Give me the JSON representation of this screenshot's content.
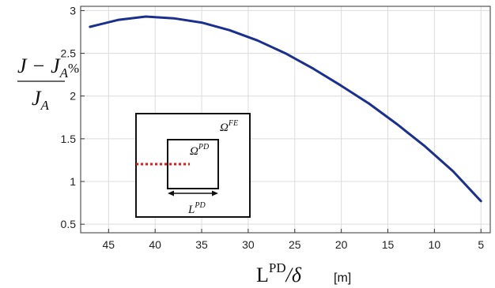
{
  "chart_data": {
    "type": "line",
    "x_reversed": true,
    "xlim": [
      48,
      4
    ],
    "ylim": [
      0.4,
      3.05
    ],
    "x_ticks": [
      45,
      40,
      35,
      30,
      25,
      20,
      15,
      10,
      5
    ],
    "y_ticks": [
      0.5,
      1,
      1.5,
      2,
      2.5,
      3
    ],
    "x_tick_labels": [
      "45",
      "40",
      "35",
      "30",
      "25",
      "20",
      "15",
      "10",
      "5"
    ],
    "y_tick_labels": [
      "0.5",
      "1",
      "1.5",
      "2",
      "2.5",
      "3"
    ],
    "grid": true,
    "xlabel": {
      "main": "L",
      "superscript": "PD",
      "over": "/δ",
      "unit": "[m]"
    },
    "ylabel": {
      "numerator": "J − J",
      "numerator_sub": "A",
      "percent": "%",
      "denominator": "J",
      "denominator_sub": "A"
    },
    "series": [
      {
        "color": "#1a2f8f",
        "x": [
          47,
          44,
          41,
          38,
          35,
          32,
          29,
          26,
          23,
          20,
          17,
          14,
          11,
          8,
          5
        ],
        "y": [
          2.81,
          2.89,
          2.93,
          2.91,
          2.86,
          2.77,
          2.65,
          2.5,
          2.32,
          2.12,
          1.91,
          1.67,
          1.41,
          1.12,
          0.77
        ]
      }
    ],
    "inset": {
      "outer_label": "Ω",
      "outer_label_sup": "FE",
      "inner_label": "Ω",
      "inner_label_sup": "PD",
      "dimension_label": "L",
      "dimension_label_sup": "PD",
      "crack_color": "#e0191b"
    }
  }
}
